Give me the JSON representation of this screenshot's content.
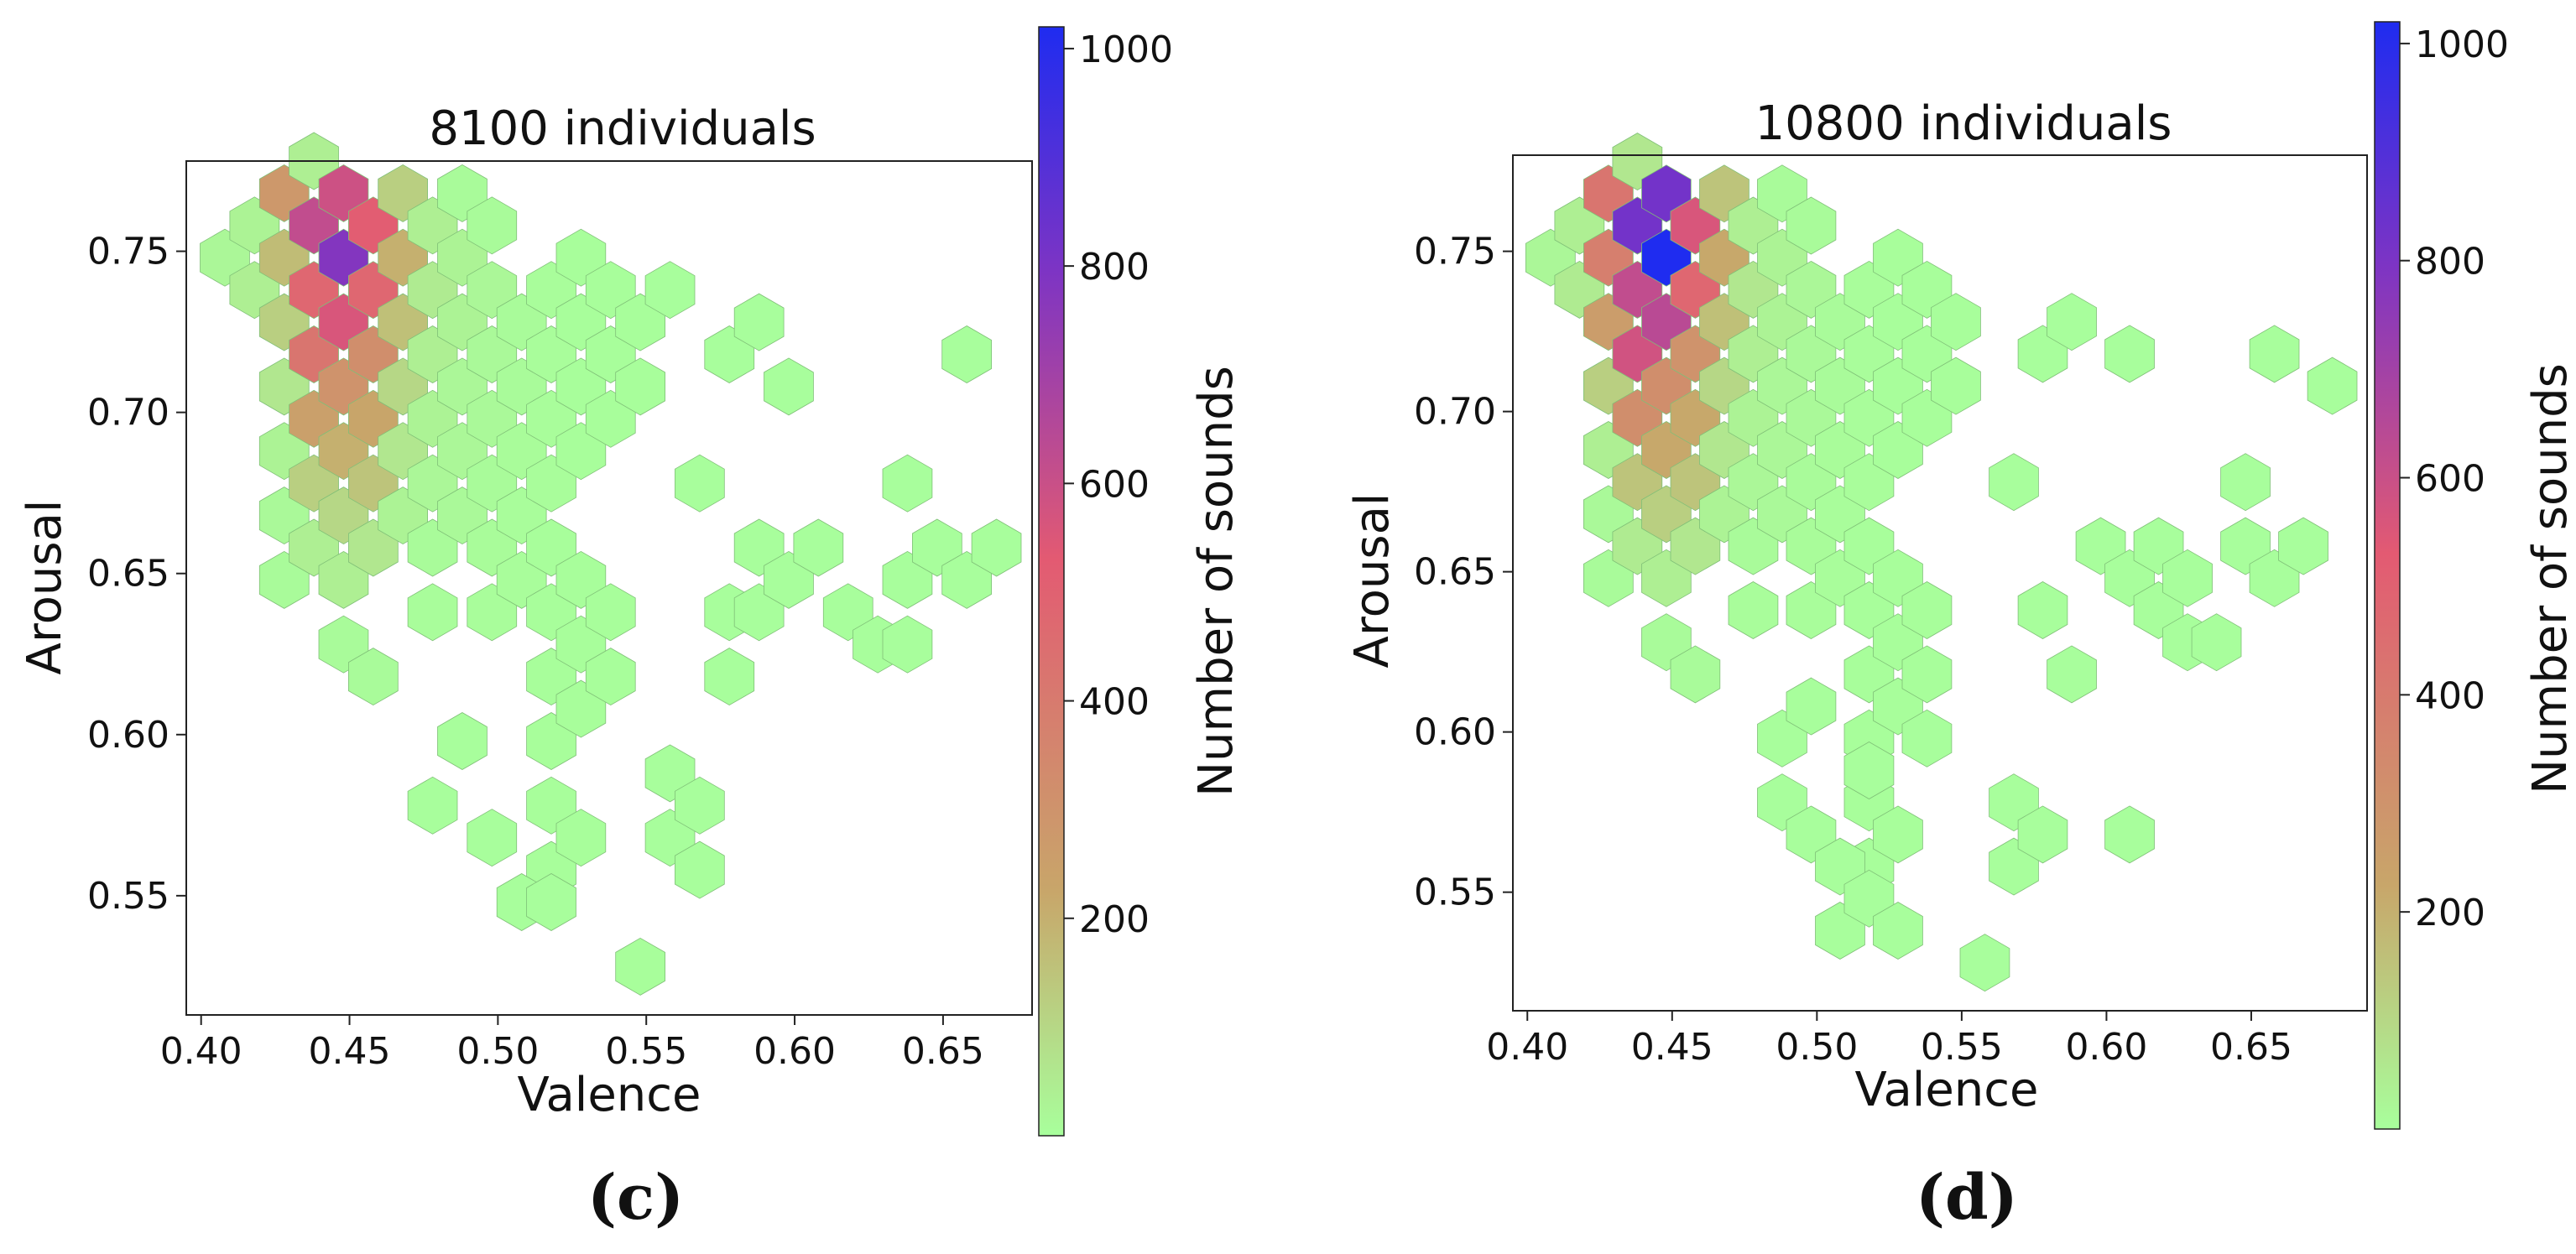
{
  "chart_data": [
    {
      "type": "hexbin",
      "panel": "(c)",
      "title": "8100 individuals",
      "xlabel": "Valence",
      "ylabel": "Arousal",
      "xlim": [
        0.395,
        0.68
      ],
      "ylim": [
        0.513,
        0.778
      ],
      "xticks": [
        "0.40",
        "0.45",
        "0.50",
        "0.55",
        "0.60",
        "0.65"
      ],
      "xtick_values": [
        0.4,
        0.45,
        0.5,
        0.55,
        0.6,
        0.65
      ],
      "yticks": [
        "0.55",
        "0.60",
        "0.65",
        "0.70",
        "0.75"
      ],
      "ytick_values": [
        0.55,
        0.6,
        0.65,
        0.7,
        0.75
      ],
      "colorbar": {
        "label": "Number of sounds",
        "ticks": [
          "200",
          "400",
          "600",
          "800",
          "1000"
        ],
        "tick_values": [
          200,
          400,
          600,
          800,
          1000
        ],
        "range": [
          0,
          1020
        ],
        "colors": [
          "#a8ff9c",
          "#c8a66a",
          "#e35a72",
          "#7d34c4",
          "#1f2cf0"
        ]
      },
      "cells": [
        [
          0.408,
          0.748,
          20
        ],
        [
          0.418,
          0.738,
          40
        ],
        [
          0.418,
          0.758,
          30
        ],
        [
          0.428,
          0.768,
          280
        ],
        [
          0.428,
          0.748,
          170
        ],
        [
          0.428,
          0.728,
          120
        ],
        [
          0.428,
          0.708,
          60
        ],
        [
          0.428,
          0.688,
          30
        ],
        [
          0.428,
          0.668,
          15
        ],
        [
          0.428,
          0.648,
          10
        ],
        [
          0.438,
          0.778,
          40
        ],
        [
          0.438,
          0.758,
          620
        ],
        [
          0.438,
          0.738,
          480
        ],
        [
          0.438,
          0.718,
          420
        ],
        [
          0.438,
          0.698,
          250
        ],
        [
          0.438,
          0.678,
          120
        ],
        [
          0.438,
          0.658,
          40
        ],
        [
          0.448,
          0.768,
          590
        ],
        [
          0.448,
          0.748,
          780
        ],
        [
          0.448,
          0.728,
          560
        ],
        [
          0.448,
          0.708,
          300
        ],
        [
          0.448,
          0.688,
          200
        ],
        [
          0.448,
          0.668,
          100
        ],
        [
          0.448,
          0.648,
          40
        ],
        [
          0.448,
          0.628,
          10
        ],
        [
          0.458,
          0.758,
          520
        ],
        [
          0.458,
          0.738,
          480
        ],
        [
          0.458,
          0.718,
          320
        ],
        [
          0.458,
          0.698,
          230
        ],
        [
          0.458,
          0.678,
          150
        ],
        [
          0.458,
          0.658,
          60
        ],
        [
          0.458,
          0.618,
          10
        ],
        [
          0.468,
          0.768,
          120
        ],
        [
          0.468,
          0.748,
          200
        ],
        [
          0.468,
          0.728,
          160
        ],
        [
          0.468,
          0.708,
          100
        ],
        [
          0.468,
          0.688,
          60
        ],
        [
          0.468,
          0.668,
          30
        ],
        [
          0.478,
          0.758,
          40
        ],
        [
          0.478,
          0.738,
          50
        ],
        [
          0.478,
          0.718,
          40
        ],
        [
          0.478,
          0.698,
          30
        ],
        [
          0.478,
          0.678,
          20
        ],
        [
          0.478,
          0.658,
          10
        ],
        [
          0.478,
          0.638,
          5
        ],
        [
          0.488,
          0.768,
          10
        ],
        [
          0.488,
          0.748,
          30
        ],
        [
          0.488,
          0.728,
          30
        ],
        [
          0.488,
          0.708,
          20
        ],
        [
          0.488,
          0.688,
          20
        ],
        [
          0.488,
          0.668,
          15
        ],
        [
          0.498,
          0.758,
          10
        ],
        [
          0.498,
          0.738,
          20
        ],
        [
          0.498,
          0.718,
          15
        ],
        [
          0.498,
          0.698,
          15
        ],
        [
          0.498,
          0.678,
          10
        ],
        [
          0.498,
          0.658,
          8
        ],
        [
          0.498,
          0.638,
          5
        ],
        [
          0.508,
          0.728,
          10
        ],
        [
          0.508,
          0.708,
          10
        ],
        [
          0.508,
          0.688,
          8
        ],
        [
          0.508,
          0.668,
          5
        ],
        [
          0.508,
          0.648,
          5
        ],
        [
          0.518,
          0.738,
          5
        ],
        [
          0.518,
          0.718,
          5
        ],
        [
          0.518,
          0.698,
          5
        ],
        [
          0.518,
          0.678,
          5
        ],
        [
          0.518,
          0.658,
          3
        ],
        [
          0.518,
          0.638,
          3
        ],
        [
          0.518,
          0.618,
          3
        ],
        [
          0.518,
          0.598,
          3
        ],
        [
          0.518,
          0.578,
          3
        ],
        [
          0.518,
          0.558,
          3
        ],
        [
          0.528,
          0.748,
          3
        ],
        [
          0.528,
          0.728,
          3
        ],
        [
          0.528,
          0.708,
          3
        ],
        [
          0.528,
          0.688,
          3
        ],
        [
          0.528,
          0.648,
          3
        ],
        [
          0.528,
          0.628,
          3
        ],
        [
          0.528,
          0.608,
          3
        ],
        [
          0.528,
          0.568,
          3
        ],
        [
          0.538,
          0.738,
          3
        ],
        [
          0.538,
          0.718,
          3
        ],
        [
          0.538,
          0.698,
          3
        ],
        [
          0.538,
          0.638,
          3
        ],
        [
          0.538,
          0.618,
          3
        ],
        [
          0.548,
          0.728,
          3
        ],
        [
          0.548,
          0.708,
          3
        ],
        [
          0.548,
          0.528,
          3
        ],
        [
          0.558,
          0.738,
          2
        ],
        [
          0.558,
          0.588,
          2
        ],
        [
          0.558,
          0.568,
          2
        ],
        [
          0.568,
          0.678,
          2
        ],
        [
          0.568,
          0.578,
          2
        ],
        [
          0.568,
          0.558,
          2
        ],
        [
          0.578,
          0.718,
          2
        ],
        [
          0.578,
          0.618,
          2
        ],
        [
          0.578,
          0.638,
          2
        ],
        [
          0.588,
          0.728,
          2
        ],
        [
          0.588,
          0.658,
          2
        ],
        [
          0.588,
          0.638,
          2
        ],
        [
          0.598,
          0.648,
          2
        ],
        [
          0.598,
          0.708,
          2
        ],
        [
          0.608,
          0.658,
          2
        ],
        [
          0.618,
          0.638,
          2
        ],
        [
          0.628,
          0.628,
          2
        ],
        [
          0.638,
          0.628,
          2
        ],
        [
          0.638,
          0.648,
          2
        ],
        [
          0.638,
          0.678,
          2
        ],
        [
          0.648,
          0.658,
          2
        ],
        [
          0.658,
          0.648,
          2
        ],
        [
          0.658,
          0.718,
          2
        ],
        [
          0.668,
          0.658,
          2
        ],
        [
          0.478,
          0.578,
          2
        ],
        [
          0.488,
          0.598,
          2
        ],
        [
          0.498,
          0.568,
          2
        ],
        [
          0.508,
          0.548,
          2
        ],
        [
          0.518,
          0.548,
          2
        ]
      ]
    },
    {
      "type": "hexbin",
      "panel": "(d)",
      "title": "10800 individuals",
      "xlabel": "Valence",
      "ylabel": "Arousal",
      "xlim": [
        0.395,
        0.69
      ],
      "ylim": [
        0.513,
        0.78
      ],
      "xticks": [
        "0.40",
        "0.45",
        "0.50",
        "0.55",
        "0.60",
        "0.65"
      ],
      "xtick_values": [
        0.4,
        0.45,
        0.5,
        0.55,
        0.6,
        0.65
      ],
      "yticks": [
        "0.55",
        "0.60",
        "0.65",
        "0.70",
        "0.75"
      ],
      "ytick_values": [
        0.55,
        0.6,
        0.65,
        0.7,
        0.75
      ],
      "colorbar": {
        "label": "Number of sounds",
        "ticks": [
          "200",
          "400",
          "600",
          "800",
          "1000"
        ],
        "tick_values": [
          200,
          400,
          600,
          800,
          1000
        ],
        "range": [
          0,
          1020
        ],
        "colors": [
          "#a8ff9c",
          "#c8a66a",
          "#e35a72",
          "#7d34c4",
          "#1f2cf0"
        ]
      },
      "cells": [
        [
          0.408,
          0.748,
          20
        ],
        [
          0.418,
          0.738,
          50
        ],
        [
          0.418,
          0.758,
          40
        ],
        [
          0.428,
          0.768,
          420
        ],
        [
          0.428,
          0.748,
          380
        ],
        [
          0.428,
          0.728,
          260
        ],
        [
          0.428,
          0.708,
          120
        ],
        [
          0.428,
          0.688,
          40
        ],
        [
          0.428,
          0.668,
          15
        ],
        [
          0.428,
          0.648,
          10
        ],
        [
          0.438,
          0.778,
          60
        ],
        [
          0.438,
          0.758,
          820
        ],
        [
          0.438,
          0.738,
          620
        ],
        [
          0.438,
          0.718,
          580
        ],
        [
          0.438,
          0.698,
          320
        ],
        [
          0.438,
          0.678,
          150
        ],
        [
          0.438,
          0.658,
          50
        ],
        [
          0.448,
          0.768,
          820
        ],
        [
          0.448,
          0.748,
          1020
        ],
        [
          0.448,
          0.728,
          640
        ],
        [
          0.448,
          0.708,
          320
        ],
        [
          0.448,
          0.688,
          220
        ],
        [
          0.448,
          0.668,
          120
        ],
        [
          0.448,
          0.648,
          40
        ],
        [
          0.448,
          0.628,
          10
        ],
        [
          0.458,
          0.758,
          560
        ],
        [
          0.458,
          0.738,
          480
        ],
        [
          0.458,
          0.718,
          300
        ],
        [
          0.458,
          0.698,
          220
        ],
        [
          0.458,
          0.678,
          150
        ],
        [
          0.458,
          0.658,
          60
        ],
        [
          0.458,
          0.618,
          10
        ],
        [
          0.468,
          0.768,
          150
        ],
        [
          0.468,
          0.748,
          220
        ],
        [
          0.468,
          0.728,
          160
        ],
        [
          0.468,
          0.708,
          100
        ],
        [
          0.468,
          0.688,
          60
        ],
        [
          0.468,
          0.668,
          30
        ],
        [
          0.478,
          0.758,
          40
        ],
        [
          0.478,
          0.738,
          60
        ],
        [
          0.478,
          0.718,
          40
        ],
        [
          0.478,
          0.698,
          30
        ],
        [
          0.478,
          0.678,
          20
        ],
        [
          0.478,
          0.658,
          10
        ],
        [
          0.478,
          0.638,
          5
        ],
        [
          0.488,
          0.768,
          10
        ],
        [
          0.488,
          0.748,
          30
        ],
        [
          0.488,
          0.728,
          30
        ],
        [
          0.488,
          0.708,
          20
        ],
        [
          0.488,
          0.688,
          20
        ],
        [
          0.488,
          0.668,
          15
        ],
        [
          0.498,
          0.758,
          10
        ],
        [
          0.498,
          0.738,
          20
        ],
        [
          0.498,
          0.718,
          15
        ],
        [
          0.498,
          0.698,
          15
        ],
        [
          0.498,
          0.678,
          10
        ],
        [
          0.498,
          0.658,
          8
        ],
        [
          0.498,
          0.638,
          5
        ],
        [
          0.508,
          0.728,
          10
        ],
        [
          0.508,
          0.708,
          10
        ],
        [
          0.508,
          0.688,
          8
        ],
        [
          0.508,
          0.668,
          5
        ],
        [
          0.508,
          0.648,
          5
        ],
        [
          0.518,
          0.738,
          5
        ],
        [
          0.518,
          0.718,
          5
        ],
        [
          0.518,
          0.698,
          5
        ],
        [
          0.518,
          0.678,
          5
        ],
        [
          0.518,
          0.658,
          3
        ],
        [
          0.518,
          0.638,
          3
        ],
        [
          0.518,
          0.618,
          3
        ],
        [
          0.518,
          0.598,
          3
        ],
        [
          0.518,
          0.578,
          3
        ],
        [
          0.518,
          0.558,
          3
        ],
        [
          0.528,
          0.748,
          3
        ],
        [
          0.528,
          0.728,
          3
        ],
        [
          0.528,
          0.708,
          3
        ],
        [
          0.528,
          0.688,
          3
        ],
        [
          0.528,
          0.648,
          3
        ],
        [
          0.528,
          0.628,
          3
        ],
        [
          0.528,
          0.608,
          3
        ],
        [
          0.528,
          0.568,
          3
        ],
        [
          0.538,
          0.738,
          3
        ],
        [
          0.538,
          0.718,
          3
        ],
        [
          0.538,
          0.698,
          3
        ],
        [
          0.538,
          0.638,
          3
        ],
        [
          0.538,
          0.618,
          3
        ],
        [
          0.548,
          0.728,
          3
        ],
        [
          0.548,
          0.708,
          3
        ],
        [
          0.558,
          0.528,
          2
        ],
        [
          0.568,
          0.678,
          2
        ],
        [
          0.568,
          0.578,
          2
        ],
        [
          0.568,
          0.558,
          2
        ],
        [
          0.578,
          0.568,
          2
        ],
        [
          0.578,
          0.718,
          2
        ],
        [
          0.578,
          0.638,
          2
        ],
        [
          0.588,
          0.618,
          2
        ],
        [
          0.588,
          0.728,
          2
        ],
        [
          0.598,
          0.658,
          2
        ],
        [
          0.608,
          0.648,
          2
        ],
        [
          0.608,
          0.718,
          2
        ],
        [
          0.608,
          0.568,
          2
        ],
        [
          0.618,
          0.658,
          2
        ],
        [
          0.618,
          0.638,
          2
        ],
        [
          0.628,
          0.628,
          2
        ],
        [
          0.628,
          0.648,
          2
        ],
        [
          0.638,
          0.628,
          2
        ],
        [
          0.648,
          0.658,
          2
        ],
        [
          0.648,
          0.678,
          2
        ],
        [
          0.658,
          0.648,
          2
        ],
        [
          0.658,
          0.718,
          2
        ],
        [
          0.668,
          0.658,
          2
        ],
        [
          0.678,
          0.708,
          2
        ],
        [
          0.488,
          0.598,
          2
        ],
        [
          0.488,
          0.578,
          2
        ],
        [
          0.498,
          0.608,
          2
        ],
        [
          0.498,
          0.568,
          2
        ],
        [
          0.508,
          0.558,
          2
        ],
        [
          0.508,
          0.538,
          2
        ],
        [
          0.518,
          0.588,
          2
        ],
        [
          0.518,
          0.548,
          2
        ],
        [
          0.528,
          0.538,
          2
        ],
        [
          0.538,
          0.598,
          2
        ]
      ]
    }
  ],
  "captions": {
    "c": "(c)",
    "d": "(d)"
  }
}
